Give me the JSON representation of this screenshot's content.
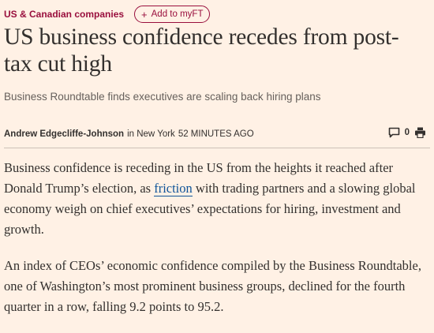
{
  "topic": "US & Canadian companies",
  "add_button": "Add to myFT",
  "headline": "US business confidence recedes from post-tax cut high",
  "standfirst": "Business Roundtable finds executives are scaling back hiring plans",
  "byline": {
    "author": "Andrew Edgecliffe-Johnson",
    "location": "in New York",
    "time": "52 MINUTES AGO"
  },
  "comment_count": "0",
  "paragraphs": [
    {
      "before": "Business confidence is receding in the US from the heights it reached after Donald Trump’s election, as ",
      "link": "friction",
      "after": " with trading partners and a slowing global economy weigh on chief executives’ expectations for hiring, investment and growth."
    },
    {
      "text": "An index of CEOs’ economic confidence compiled by the Business Roundtable, one of Washington’s most prominent business groups, declined for the fourth quarter in a row, falling 9.2 points to 95.2."
    }
  ],
  "colors": {
    "background": "#fff1e5",
    "accent": "#990f3d",
    "link": "#0f5499",
    "text": "#33302e"
  }
}
